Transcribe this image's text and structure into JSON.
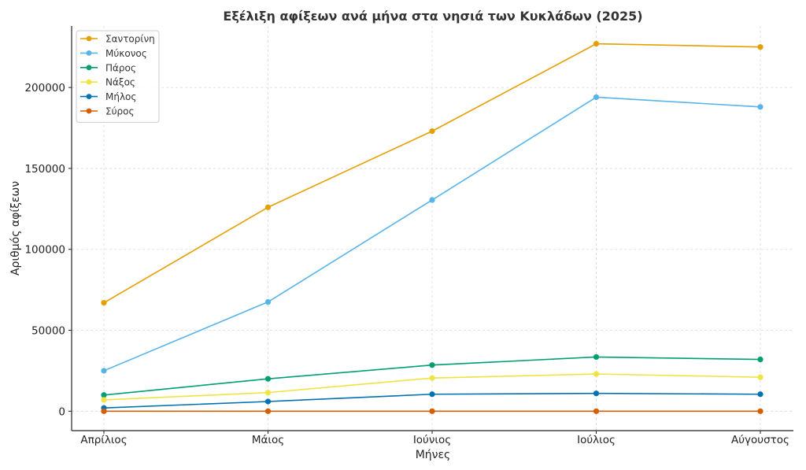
{
  "chart_data": {
    "type": "line",
    "title": "Εξέλιξη αφίξεων ανά μήνα στα νησιά των Κυκλάδων (2025)",
    "xlabel": "Μήνες",
    "ylabel": "Αριθμός αφίξεων",
    "categories": [
      "Απρίλιος",
      "Μάιος",
      "Ιούνιος",
      "Ιούλιος",
      "Αύγουστος"
    ],
    "ylim": [
      -12000,
      238000
    ],
    "yticks": [
      0,
      50000,
      100000,
      150000,
      200000
    ],
    "ytick_labels": [
      "0",
      "50000",
      "100000",
      "150000",
      "200000"
    ],
    "grid": true,
    "legend_position": "top-left",
    "series": [
      {
        "name": "Σαντορίνη",
        "color": "#E69F00",
        "values": [
          67000,
          126000,
          173000,
          227000,
          225000
        ]
      },
      {
        "name": "Μύκονος",
        "color": "#56B4E9",
        "values": [
          25000,
          67500,
          130500,
          194000,
          188000
        ]
      },
      {
        "name": "Πάρος",
        "color": "#009E73",
        "values": [
          10000,
          20000,
          28500,
          33500,
          32000
        ]
      },
      {
        "name": "Νάξος",
        "color": "#F0E442",
        "values": [
          7000,
          11500,
          20500,
          23000,
          21000
        ]
      },
      {
        "name": "Μήλος",
        "color": "#0072B2",
        "values": [
          2000,
          6000,
          10500,
          11000,
          10500
        ]
      },
      {
        "name": "Σύρος",
        "color": "#D55E00",
        "values": [
          0,
          0,
          0,
          0,
          0
        ]
      }
    ]
  }
}
